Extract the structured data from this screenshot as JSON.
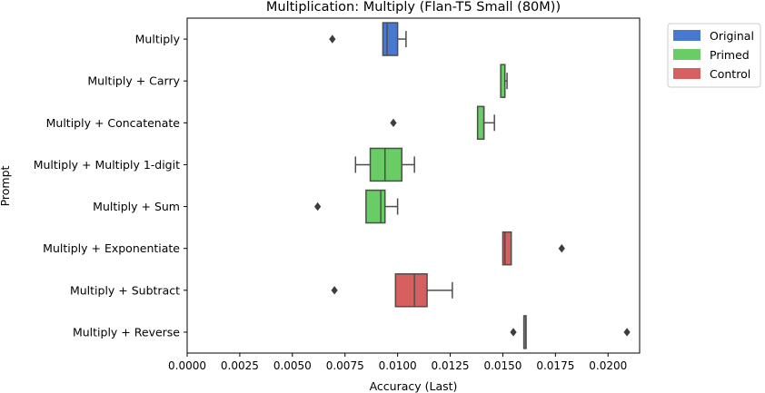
{
  "chart_data": {
    "type": "boxplot",
    "orientation": "horizontal",
    "title": "Multiplication: Multiply (Flan-T5 Small (80M))",
    "xlabel": "Accuracy (Last)",
    "ylabel": "Prompt",
    "xlim": [
      0.0,
      0.0215
    ],
    "x_ticks": [
      0.0,
      0.0025,
      0.005,
      0.0075,
      0.01,
      0.0125,
      0.015,
      0.0175,
      0.02
    ],
    "x_tick_labels": [
      "0.0000",
      "0.0025",
      "0.0050",
      "0.0075",
      "0.0100",
      "0.0125",
      "0.0150",
      "0.0175",
      "0.0200"
    ],
    "legend": {
      "position": "upper-right-outside",
      "entries": [
        {
          "label": "Original",
          "color": "#4878d0"
        },
        {
          "label": "Primed",
          "color": "#6acc64"
        },
        {
          "label": "Control",
          "color": "#d65f5f"
        }
      ]
    },
    "categories": [
      {
        "label": "Multiply",
        "group": "Original",
        "whisker_low": 0.0093,
        "q1": 0.0093,
        "median": 0.0095,
        "q3": 0.01,
        "whisker_high": 0.0104,
        "outliers": [
          0.0069
        ]
      },
      {
        "label": "Multiply + Carry",
        "group": "Primed",
        "whisker_low": 0.0149,
        "q1": 0.0149,
        "median": 0.0151,
        "q3": 0.0151,
        "whisker_high": 0.0152,
        "outliers": []
      },
      {
        "label": "Multiply + Concatenate",
        "group": "Primed",
        "whisker_low": 0.0138,
        "q1": 0.0138,
        "median": 0.0141,
        "q3": 0.0141,
        "whisker_high": 0.0146,
        "outliers": [
          0.0098
        ]
      },
      {
        "label": "Multiply + Multiply 1-digit",
        "group": "Primed",
        "whisker_low": 0.008,
        "q1": 0.0087,
        "median": 0.0094,
        "q3": 0.0102,
        "whisker_high": 0.0108,
        "outliers": []
      },
      {
        "label": "Multiply + Sum",
        "group": "Primed",
        "whisker_low": 0.0085,
        "q1": 0.0085,
        "median": 0.0092,
        "q3": 0.0094,
        "whisker_high": 0.01,
        "outliers": [
          0.0062
        ]
      },
      {
        "label": "Multiply + Exponentiate",
        "group": "Control",
        "whisker_low": 0.015,
        "q1": 0.015,
        "median": 0.0151,
        "q3": 0.0154,
        "whisker_high": 0.0154,
        "outliers": [
          0.0178
        ]
      },
      {
        "label": "Multiply + Subtract",
        "group": "Control",
        "whisker_low": 0.0099,
        "q1": 0.0099,
        "median": 0.0108,
        "q3": 0.0114,
        "whisker_high": 0.0126,
        "outliers": [
          0.007
        ]
      },
      {
        "label": "Multiply + Reverse",
        "group": "Control",
        "whisker_low": 0.016,
        "q1": 0.016,
        "median": 0.0161,
        "q3": 0.0161,
        "whisker_high": 0.0161,
        "outliers": [
          0.0155,
          0.0209
        ]
      }
    ]
  }
}
